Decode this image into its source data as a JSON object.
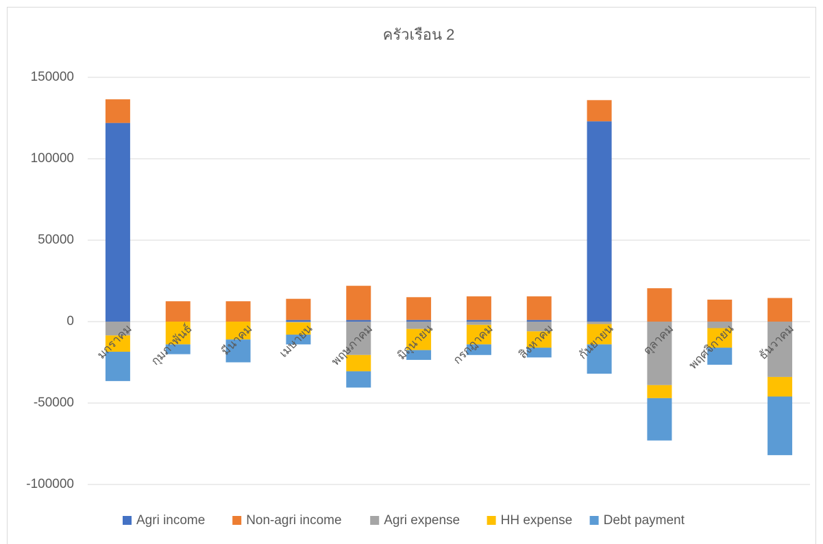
{
  "chart_data": {
    "type": "stacked_bar",
    "title": "ครัวเรือน 2",
    "categories": [
      "มกราคม",
      "กุมภาพันธ์",
      "มีนาคม",
      "เมษายน",
      "พฤษภาคม",
      "มิถุนายน",
      "กรกฎาคม",
      "สิงหาคม",
      "กันยายน",
      "ตุลาคม",
      "พฤศจิกายน",
      "ธันวาคม"
    ],
    "series": [
      {
        "name": "Agri income",
        "color": "#4472c4",
        "values": [
          122000,
          0,
          0,
          1000,
          1000,
          1000,
          1000,
          1000,
          123000,
          0,
          0,
          0
        ]
      },
      {
        "name": "Non-agri income",
        "color": "#ed7d31",
        "values": [
          14500,
          12500,
          12500,
          13000,
          21000,
          14000,
          14500,
          14500,
          13000,
          20500,
          13500,
          14500
        ]
      },
      {
        "name": "Agri expense",
        "color": "#a5a5a5",
        "values": [
          -8500,
          0,
          0,
          -500,
          -20500,
          -4500,
          -2000,
          -6000,
          -1500,
          -39000,
          -4000,
          -34000
        ]
      },
      {
        "name": "HH expense",
        "color": "#ffc000",
        "values": [
          -10000,
          -14000,
          -11000,
          -7500,
          -10000,
          -13000,
          -12000,
          -10000,
          -12500,
          -8000,
          -12000,
          -12000
        ]
      },
      {
        "name": "Debt payment",
        "color": "#5b9bd5",
        "values": [
          -18000,
          -6000,
          -14000,
          -6000,
          -10000,
          -6000,
          -6500,
          -6000,
          -18000,
          -26000,
          -10500,
          -36000
        ]
      }
    ],
    "ylim": [
      -100000,
      150000
    ],
    "yticks": [
      -100000,
      -50000,
      0,
      50000,
      100000,
      150000
    ],
    "grid": true,
    "legend": "bottom"
  }
}
